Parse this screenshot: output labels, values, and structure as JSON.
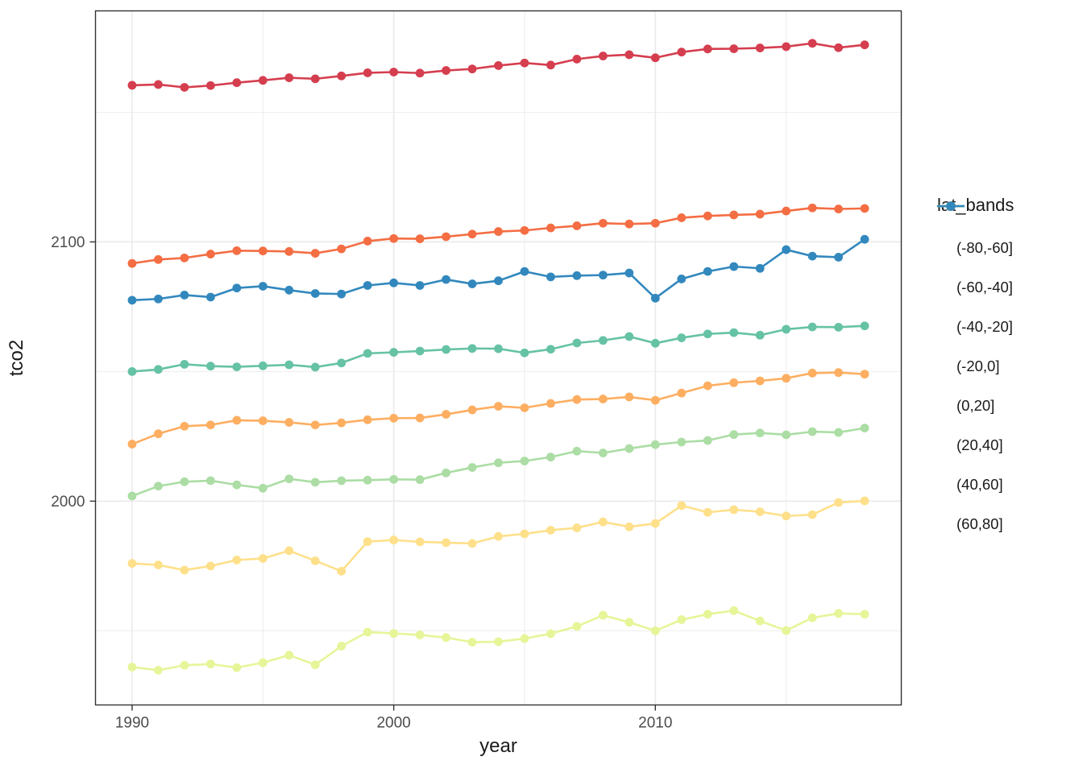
{
  "figure": {
    "background": "#FFFFFF"
  },
  "chart_data": {
    "type": "line",
    "title": "",
    "xlabel": "year",
    "ylabel": "tco2",
    "legend_title": "lat_bands",
    "legend_position": "right",
    "grid": "major and minor gridlines, light gray on white panel with dark border (ggplot theme_bw style)",
    "x": [
      1990,
      1991,
      1992,
      1993,
      1994,
      1995,
      1996,
      1997,
      1998,
      1999,
      2000,
      2001,
      2002,
      2003,
      2004,
      2005,
      2006,
      2007,
      2008,
      2009,
      2010,
      2011,
      2012,
      2013,
      2014,
      2015,
      2016,
      2017,
      2018
    ],
    "xlim": [
      1988.6,
      2019.4
    ],
    "ylim": [
      1921.4,
      2189.1
    ],
    "x_major_ticks": [
      1990,
      2000,
      2010
    ],
    "x_minor_gridlines": [
      1995,
      2005,
      2015
    ],
    "y_major_ticks": [
      2000,
      2100
    ],
    "y_minor_gridlines": [
      1950,
      2050,
      2150
    ],
    "series": [
      {
        "name": "(-80,-60]",
        "color": "#D53E4F",
        "values": [
          2160.4,
          2160.7,
          2159.6,
          2160.3,
          2161.4,
          2162.3,
          2163.3,
          2162.9,
          2164.0,
          2165.2,
          2165.5,
          2165.1,
          2166.1,
          2166.7,
          2168.0,
          2169.0,
          2168.2,
          2170.5,
          2171.7,
          2172.2,
          2171.0,
          2173.2,
          2174.4,
          2174.5,
          2174.8,
          2175.3,
          2176.6,
          2174.9,
          2176.0
        ]
      },
      {
        "name": "(-60,-40]",
        "color": "#F46D43",
        "values": [
          2091.7,
          2093.2,
          2093.8,
          2095.3,
          2096.6,
          2096.5,
          2096.3,
          2095.6,
          2097.3,
          2100.3,
          2101.3,
          2101.2,
          2102.0,
          2103.0,
          2104.0,
          2104.4,
          2105.4,
          2106.2,
          2107.2,
          2106.9,
          2107.2,
          2109.3,
          2110.0,
          2110.4,
          2110.7,
          2111.9,
          2113.1,
          2112.7,
          2112.9
        ]
      },
      {
        "name": "(-40,-20]",
        "color": "#FDAE61",
        "values": [
          2022.0,
          2026.0,
          2028.9,
          2029.4,
          2031.2,
          2031.0,
          2030.4,
          2029.4,
          2030.2,
          2031.4,
          2032.0,
          2032.1,
          2033.5,
          2035.2,
          2036.6,
          2036.0,
          2037.7,
          2039.2,
          2039.4,
          2040.2,
          2038.9,
          2041.7,
          2044.5,
          2045.7,
          2046.4,
          2047.4,
          2049.4,
          2049.6,
          2049.0
        ]
      },
      {
        "name": "(-20,0]",
        "color": "#FEE08B",
        "values": [
          1976.0,
          1975.4,
          1973.4,
          1975.0,
          1977.3,
          1977.9,
          1980.9,
          1977.0,
          1973.0,
          1984.4,
          1985.0,
          1984.3,
          1984.0,
          1983.7,
          1986.4,
          1987.4,
          1988.8,
          1989.7,
          1992.0,
          1990.1,
          1991.4,
          1998.3,
          1995.7,
          1996.7,
          1995.9,
          1994.3,
          1994.8,
          1999.5,
          2000.1
        ]
      },
      {
        "name": "(0,20]",
        "color": "#E6F598",
        "values": [
          1936.0,
          1934.8,
          1936.7,
          1937.2,
          1935.8,
          1937.7,
          1940.6,
          1936.9,
          1944.1,
          1949.5,
          1949.0,
          1948.4,
          1947.4,
          1945.6,
          1945.8,
          1947.0,
          1948.9,
          1951.7,
          1956.0,
          1953.3,
          1950.0,
          1954.3,
          1956.4,
          1957.8,
          1953.8,
          1950.1,
          1955.0,
          1956.7,
          1956.4
        ]
      },
      {
        "name": "(20,40]",
        "color": "#ABDDA4",
        "values": [
          2002.0,
          2005.8,
          2007.5,
          2007.9,
          2006.3,
          2005.0,
          2008.6,
          2007.3,
          2007.9,
          2008.1,
          2008.4,
          2008.3,
          2010.9,
          2013.0,
          2014.8,
          2015.5,
          2017.0,
          2019.3,
          2018.6,
          2020.3,
          2021.8,
          2022.8,
          2023.4,
          2025.7,
          2026.3,
          2025.6,
          2026.8,
          2026.5,
          2028.2
        ]
      },
      {
        "name": "(40,60]",
        "color": "#66C2A5",
        "values": [
          2050.0,
          2050.8,
          2052.8,
          2052.1,
          2051.8,
          2052.2,
          2052.6,
          2051.7,
          2053.3,
          2057.0,
          2057.4,
          2057.9,
          2058.5,
          2058.9,
          2058.8,
          2057.2,
          2058.6,
          2061.0,
          2062.0,
          2063.5,
          2060.9,
          2063.0,
          2064.5,
          2065.0,
          2064.0,
          2066.3,
          2067.2,
          2067.1,
          2067.6
        ]
      },
      {
        "name": "(60,80]",
        "color": "#3288BD",
        "values": [
          2077.5,
          2078.0,
          2079.5,
          2078.7,
          2082.2,
          2082.9,
          2081.4,
          2080.1,
          2079.9,
          2083.2,
          2084.2,
          2083.2,
          2085.5,
          2083.8,
          2085.0,
          2088.6,
          2086.5,
          2087.0,
          2087.2,
          2088.0,
          2078.3,
          2085.7,
          2088.6,
          2090.5,
          2089.8,
          2097.0,
          2094.5,
          2094.1,
          2101.0
        ]
      }
    ],
    "style": {
      "panel_border_color": "#333333",
      "grid_color": "#EBEBEB",
      "tick_color": "#333333",
      "tick_label_color": "#4D4D4D",
      "axis_title_color": "#1A1A1A",
      "line_width": 2.6,
      "point_radius": 5.4
    }
  }
}
